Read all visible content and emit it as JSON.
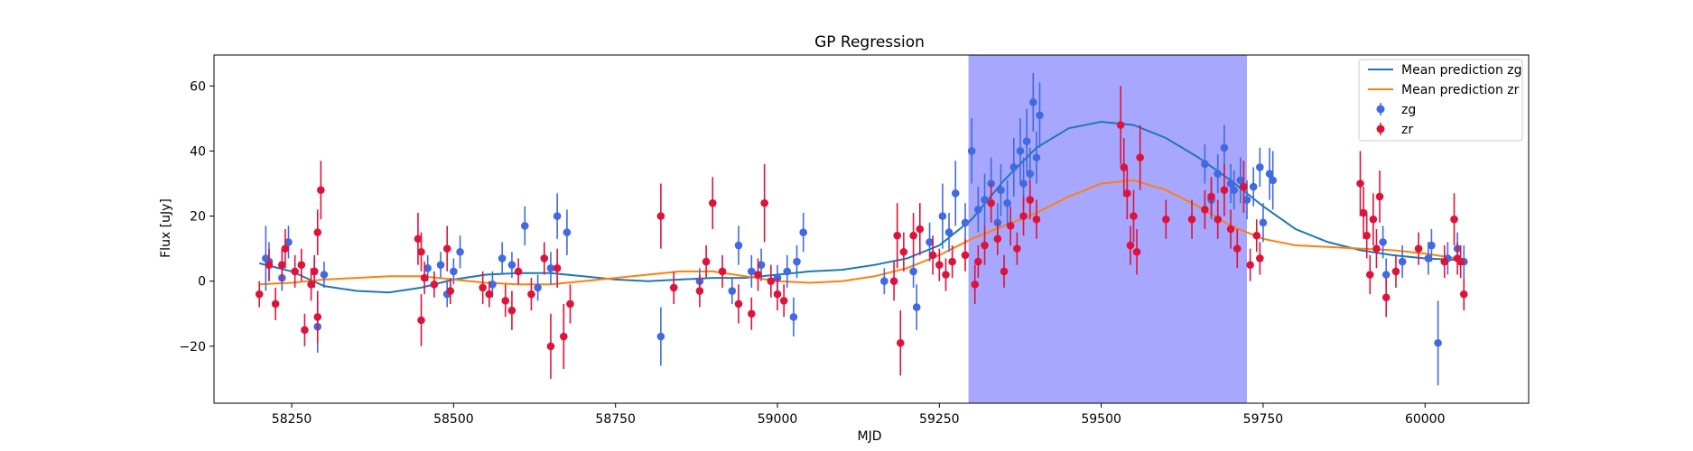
{
  "chart_data": {
    "type": "scatter",
    "title": "GP Regression",
    "xlabel": "MJD",
    "ylabel": "Flux [uJy]",
    "xlim": [
      58130,
      60160
    ],
    "ylim": [
      -37.5,
      69.5
    ],
    "xticks": [
      58250,
      58500,
      58750,
      59000,
      59250,
      59500,
      59750,
      60000
    ],
    "yticks": [
      -20,
      0,
      20,
      40,
      60
    ],
    "grid": false,
    "legend_position": "top-right",
    "highlight_span": {
      "x0": 59295,
      "x1": 59725,
      "color": "#a7a7ff"
    },
    "series": [
      {
        "name": "Mean prediction zg",
        "kind": "line",
        "color": "#1f77b4",
        "x": [
          58200,
          58250,
          58300,
          58350,
          58400,
          58450,
          58500,
          58550,
          58600,
          58650,
          58700,
          58750,
          58800,
          58850,
          58900,
          58950,
          59000,
          59050,
          59100,
          59150,
          59200,
          59250,
          59300,
          59350,
          59400,
          59450,
          59500,
          59550,
          59600,
          59650,
          59700,
          59750,
          59800,
          59850,
          59900,
          59950,
          60000,
          60050,
          60060
        ],
        "y": [
          5.5,
          3.0,
          -1.5,
          -3.0,
          -3.5,
          -2.0,
          0.5,
          2.0,
          2.5,
          2.5,
          1.5,
          0.5,
          0.0,
          0.5,
          1.0,
          1.0,
          2.0,
          3.0,
          3.5,
          5.0,
          7.0,
          11.0,
          19.0,
          31.0,
          41.0,
          47.0,
          49.0,
          48.0,
          44.0,
          38.0,
          31.0,
          23.0,
          16.0,
          12.0,
          9.5,
          8.0,
          7.0,
          6.5,
          6.5
        ]
      },
      {
        "name": "Mean prediction zr",
        "kind": "line",
        "color": "#ff7f0e",
        "x": [
          58200,
          58250,
          58300,
          58350,
          58400,
          58450,
          58500,
          58550,
          58600,
          58650,
          58700,
          58750,
          58800,
          58850,
          58900,
          58950,
          59000,
          59050,
          59100,
          59150,
          59200,
          59250,
          59300,
          59350,
          59400,
          59450,
          59500,
          59550,
          59600,
          59650,
          59700,
          59750,
          59800,
          59850,
          59900,
          59950,
          60000,
          60050,
          60060
        ],
        "y": [
          -1.0,
          -0.5,
          0.5,
          1.0,
          1.5,
          1.5,
          0.5,
          -0.5,
          -1.0,
          -1.0,
          0.0,
          1.0,
          2.0,
          3.0,
          3.0,
          1.5,
          0.0,
          -0.5,
          0.0,
          1.5,
          4.0,
          8.0,
          13.0,
          17.0,
          21.0,
          26.0,
          30.0,
          31.0,
          28.0,
          23.0,
          17.0,
          13.0,
          11.0,
          10.5,
          10.0,
          9.5,
          8.5,
          7.0,
          6.5
        ]
      },
      {
        "name": "zg",
        "kind": "errorbar",
        "color": "#4169e1",
        "points": [
          [
            58210,
            7,
            10
          ],
          [
            58215,
            6,
            6
          ],
          [
            58235,
            1,
            4
          ],
          [
            58245,
            12,
            5
          ],
          [
            58285,
            3,
            4
          ],
          [
            58290,
            -14,
            8
          ],
          [
            58300,
            2,
            4
          ],
          [
            58460,
            4,
            4
          ],
          [
            58480,
            5,
            4
          ],
          [
            58490,
            -4,
            4
          ],
          [
            58500,
            3,
            4
          ],
          [
            58510,
            9,
            5
          ],
          [
            58560,
            -1,
            4
          ],
          [
            58575,
            7,
            5
          ],
          [
            58590,
            5,
            4
          ],
          [
            58610,
            17,
            6
          ],
          [
            58630,
            -2,
            4
          ],
          [
            58650,
            4,
            5
          ],
          [
            58660,
            20,
            7
          ],
          [
            58675,
            15,
            7
          ],
          [
            58820,
            -17,
            9
          ],
          [
            58880,
            0,
            4
          ],
          [
            58930,
            -3,
            4
          ],
          [
            58940,
            11,
            6
          ],
          [
            58960,
            3,
            5
          ],
          [
            58975,
            5,
            5
          ],
          [
            59000,
            1,
            4
          ],
          [
            59015,
            3,
            5
          ],
          [
            59025,
            -11,
            6
          ],
          [
            59030,
            6,
            5
          ],
          [
            59040,
            15,
            6
          ],
          [
            59165,
            0,
            4
          ],
          [
            59210,
            3,
            5
          ],
          [
            59215,
            -8,
            7
          ],
          [
            59235,
            12,
            6
          ],
          [
            59255,
            20,
            10
          ],
          [
            59265,
            15,
            6
          ],
          [
            59275,
            27,
            10
          ],
          [
            59290,
            18,
            6
          ],
          [
            59300,
            40,
            10
          ],
          [
            59310,
            22,
            7
          ],
          [
            59320,
            25,
            8
          ],
          [
            59330,
            30,
            8
          ],
          [
            59340,
            18,
            6
          ],
          [
            59345,
            28,
            8
          ],
          [
            59355,
            24,
            7
          ],
          [
            59365,
            35,
            9
          ],
          [
            59375,
            40,
            10
          ],
          [
            59380,
            30,
            8
          ],
          [
            59385,
            43,
            10
          ],
          [
            59390,
            33,
            8
          ],
          [
            59395,
            55,
            9
          ],
          [
            59400,
            38,
            8
          ],
          [
            59405,
            51,
            10
          ],
          [
            59660,
            36,
            6
          ],
          [
            59670,
            25,
            6
          ],
          [
            59680,
            33,
            6
          ],
          [
            59690,
            41,
            7
          ],
          [
            59700,
            30,
            6
          ],
          [
            59705,
            28,
            6
          ],
          [
            59715,
            31,
            7
          ],
          [
            59725,
            25,
            6
          ],
          [
            59735,
            29,
            6
          ],
          [
            59745,
            35,
            6
          ],
          [
            59750,
            18,
            6
          ],
          [
            59760,
            33,
            8
          ],
          [
            59765,
            31,
            9
          ],
          [
            59935,
            12,
            5
          ],
          [
            59940,
            2,
            5
          ],
          [
            59965,
            6,
            5
          ],
          [
            60005,
            7,
            5
          ],
          [
            60010,
            11,
            5
          ],
          [
            60020,
            -19,
            13
          ],
          [
            60035,
            7,
            5
          ],
          [
            60050,
            10,
            5
          ],
          [
            60060,
            6,
            5
          ]
        ]
      },
      {
        "name": "zr",
        "kind": "errorbar",
        "color": "#dc143c",
        "points": [
          [
            58200,
            -4,
            4
          ],
          [
            58215,
            5,
            5
          ],
          [
            58225,
            -7,
            5
          ],
          [
            58235,
            5,
            5
          ],
          [
            58240,
            10,
            6
          ],
          [
            58255,
            3,
            5
          ],
          [
            58265,
            5,
            5
          ],
          [
            58270,
            -15,
            5
          ],
          [
            58280,
            -1,
            5
          ],
          [
            58285,
            3,
            5
          ],
          [
            58290,
            15,
            7
          ],
          [
            58295,
            28,
            9
          ],
          [
            58290,
            -11,
            8
          ],
          [
            58445,
            13,
            8
          ],
          [
            58450,
            9,
            6
          ],
          [
            58450,
            -12,
            8
          ],
          [
            58455,
            1,
            5
          ],
          [
            58470,
            -1,
            4
          ],
          [
            58490,
            10,
            7
          ],
          [
            58495,
            -3,
            4
          ],
          [
            58545,
            -2,
            5
          ],
          [
            58555,
            -4,
            4
          ],
          [
            58580,
            -6,
            5
          ],
          [
            58590,
            -9,
            6
          ],
          [
            58600,
            3,
            4
          ],
          [
            58620,
            -4,
            5
          ],
          [
            58640,
            7,
            5
          ],
          [
            58650,
            -20,
            10
          ],
          [
            58660,
            4,
            6
          ],
          [
            58670,
            -17,
            10
          ],
          [
            58680,
            -7,
            6
          ],
          [
            58820,
            20,
            10
          ],
          [
            58840,
            -2,
            5
          ],
          [
            58880,
            -3,
            5
          ],
          [
            58890,
            6,
            5
          ],
          [
            58900,
            24,
            8
          ],
          [
            58915,
            3,
            5
          ],
          [
            58940,
            -7,
            6
          ],
          [
            58960,
            -10,
            5
          ],
          [
            58970,
            2,
            5
          ],
          [
            58980,
            24,
            12
          ],
          [
            58990,
            0,
            5
          ],
          [
            59000,
            -4,
            5
          ],
          [
            59010,
            -6,
            5
          ],
          [
            59180,
            0,
            6
          ],
          [
            59185,
            14,
            10
          ],
          [
            59190,
            -19,
            10
          ],
          [
            59195,
            9,
            6
          ],
          [
            59210,
            14,
            7
          ],
          [
            59220,
            16,
            8
          ],
          [
            59240,
            8,
            6
          ],
          [
            59250,
            5,
            5
          ],
          [
            59260,
            2,
            5
          ],
          [
            59270,
            6,
            5
          ],
          [
            59290,
            8,
            5
          ],
          [
            59305,
            -1,
            6
          ],
          [
            59310,
            6,
            5
          ],
          [
            59320,
            11,
            6
          ],
          [
            59330,
            24,
            6
          ],
          [
            59340,
            13,
            5
          ],
          [
            59350,
            3,
            5
          ],
          [
            59360,
            17,
            6
          ],
          [
            59370,
            10,
            5
          ],
          [
            59380,
            20,
            6
          ],
          [
            59390,
            25,
            6
          ],
          [
            59400,
            19,
            6
          ],
          [
            59530,
            48,
            12
          ],
          [
            59535,
            35,
            9
          ],
          [
            59540,
            27,
            8
          ],
          [
            59545,
            11,
            6
          ],
          [
            59550,
            20,
            8
          ],
          [
            59555,
            9,
            7
          ],
          [
            59560,
            38,
            10
          ],
          [
            59600,
            19,
            6
          ],
          [
            59640,
            19,
            6
          ],
          [
            59660,
            22,
            6
          ],
          [
            59670,
            26,
            6
          ],
          [
            59680,
            19,
            6
          ],
          [
            59690,
            28,
            8
          ],
          [
            59700,
            16,
            6
          ],
          [
            59710,
            10,
            6
          ],
          [
            59720,
            29,
            8
          ],
          [
            59730,
            5,
            5
          ],
          [
            59740,
            14,
            5
          ],
          [
            59745,
            7,
            5
          ],
          [
            59900,
            30,
            10
          ],
          [
            59905,
            21,
            8
          ],
          [
            59910,
            14,
            7
          ],
          [
            59915,
            2,
            6
          ],
          [
            59920,
            19,
            8
          ],
          [
            59925,
            10,
            6
          ],
          [
            59930,
            26,
            8
          ],
          [
            59940,
            -5,
            6
          ],
          [
            59955,
            3,
            5
          ],
          [
            59990,
            10,
            5
          ],
          [
            60030,
            6,
            5
          ],
          [
            60045,
            19,
            8
          ],
          [
            60050,
            7,
            5
          ],
          [
            60055,
            6,
            5
          ],
          [
            60060,
            -4,
            5
          ]
        ]
      }
    ]
  }
}
